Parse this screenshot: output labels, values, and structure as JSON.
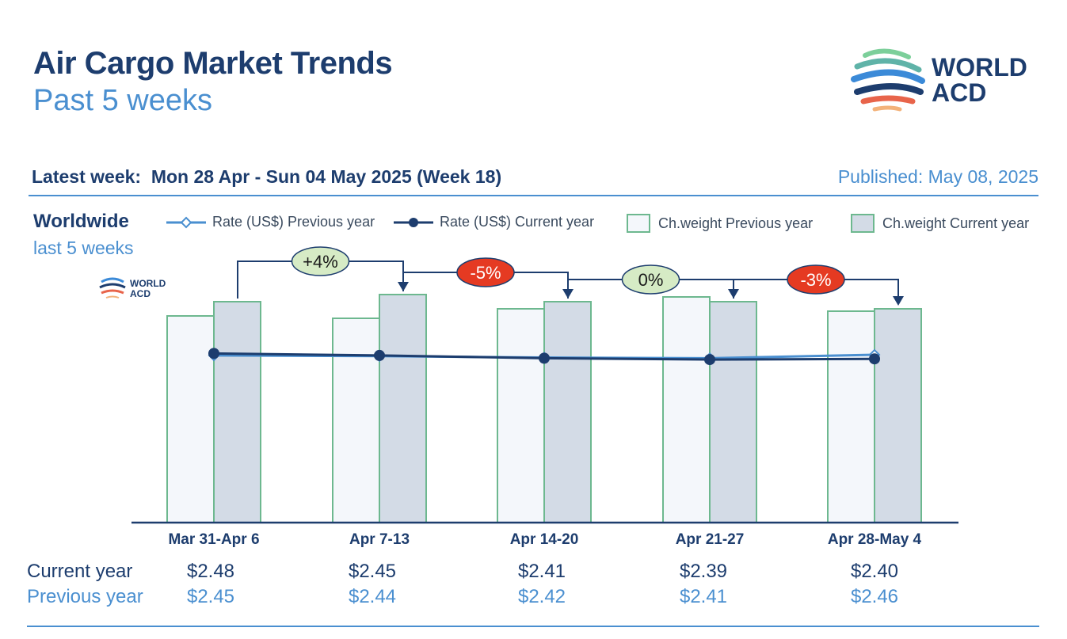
{
  "header": {
    "title": "Air Cargo Market Trends",
    "subtitle": "Past 5 weeks",
    "latest_week_label": "Latest week:",
    "latest_week_value": "Mon 28 Apr - Sun 04 May 2025 (Week 18)",
    "published": "Published: May 08, 2025",
    "logo_line1": "WORLD",
    "logo_line2": "ACD"
  },
  "region": {
    "name": "Worldwide",
    "period": "last 5 weeks"
  },
  "legend": {
    "rate_prev": "Rate (US$) Previous year",
    "rate_cur": "Rate (US$) Current year",
    "weight_prev": "Ch.weight Previous year",
    "weight_cur": "Ch.weight Current year"
  },
  "table": {
    "current_label": "Current year",
    "previous_label": "Previous year",
    "current": [
      "$2.48",
      "$2.45",
      "$2.41",
      "$2.39",
      "$2.40"
    ],
    "previous": [
      "$2.45",
      "$2.44",
      "$2.42",
      "$2.41",
      "$2.46"
    ]
  },
  "colors": {
    "navy": "#1d3d6e",
    "light_blue": "#4a8fd0",
    "bar_border": "#6db88f",
    "bar_prev_fill": "#f4f7fb",
    "bar_cur_fill": "#d3dbe6",
    "badge_positive": "#d6ebc5",
    "badge_negative": "#e53a22"
  },
  "chart_data": {
    "type": "bar",
    "categories": [
      "Mar 31-Apr 6",
      "Apr 7-13",
      "Apr 14-20",
      "Apr 21-27",
      "Apr 28-May 4"
    ],
    "series": [
      {
        "name": "Ch.weight Previous year",
        "kind": "bar",
        "values": [
          87,
          86,
          90,
          95,
          89
        ]
      },
      {
        "name": "Ch.weight Current year",
        "kind": "bar",
        "values": [
          93,
          96,
          93,
          93,
          90
        ]
      },
      {
        "name": "Rate (US$) Previous year",
        "kind": "line",
        "values": [
          2.45,
          2.44,
          2.42,
          2.41,
          2.46
        ]
      },
      {
        "name": "Rate (US$) Current year",
        "kind": "line",
        "values": [
          2.48,
          2.45,
          2.41,
          2.39,
          2.4
        ]
      }
    ],
    "bar_ylim": [
      0,
      105
    ],
    "rate_ylim": [
      0,
      6.5
    ],
    "changes": [
      "+4%",
      "-5%",
      "0%",
      "-3%"
    ],
    "change_colors": [
      "#d6ebc5",
      "#e53a22",
      "#d6ebc5",
      "#e53a22"
    ],
    "change_text_colors": [
      "#1a1a1a",
      "#ffffff",
      "#1a1a1a",
      "#ffffff"
    ]
  }
}
